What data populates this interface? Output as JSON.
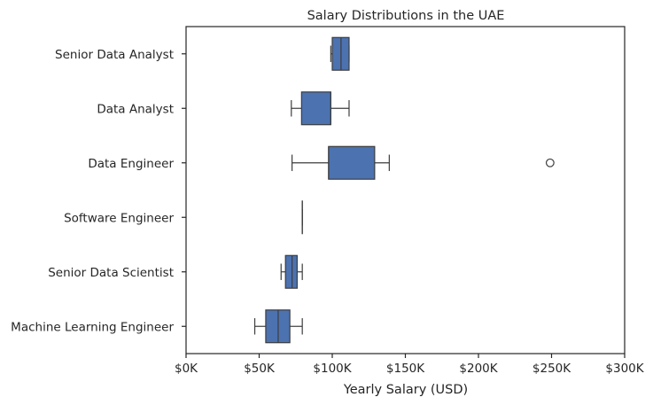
{
  "chart_data": {
    "type": "box",
    "orientation": "horizontal",
    "title": "Salary Distributions in the UAE",
    "xlabel": "Yearly Salary (USD)",
    "ylabel": "",
    "xlim": [
      0,
      300000
    ],
    "xticks": [
      0,
      50000,
      100000,
      150000,
      200000,
      250000,
      300000
    ],
    "xtick_labels": [
      "$0K",
      "$50K",
      "$100K",
      "$150K",
      "$200K",
      "$250K",
      "$300K"
    ],
    "box_color": "#4c72b0",
    "edge_color": "#3d3d3d",
    "grid": false,
    "categories": [
      "Senior Data Analyst",
      "Data Analyst",
      "Data Engineer",
      "Software Engineer",
      "Senior Data Scientist",
      "Machine Learning Engineer"
    ],
    "boxes": [
      {
        "category": "Senior Data Analyst",
        "whislo": 99000,
        "q1": 100000,
        "med": 106000,
        "q3": 111500,
        "whishi": 111500,
        "fliers": []
      },
      {
        "category": "Data Analyst",
        "whislo": 72000,
        "q1": 79000,
        "med": 99000,
        "q3": 99000,
        "whishi": 111500,
        "fliers": []
      },
      {
        "category": "Data Engineer",
        "whislo": 72500,
        "q1": 97500,
        "med": 97500,
        "q3": 129000,
        "whishi": 139000,
        "fliers": [
          249000
        ]
      },
      {
        "category": "Software Engineer",
        "whislo": 79500,
        "q1": 79500,
        "med": 79500,
        "q3": 79500,
        "whishi": 79500,
        "fliers": []
      },
      {
        "category": "Senior Data Scientist",
        "whislo": 65000,
        "q1": 68000,
        "med": 72500,
        "q3": 76000,
        "whishi": 79500,
        "fliers": []
      },
      {
        "category": "Machine Learning Engineer",
        "whislo": 47000,
        "q1": 54500,
        "med": 63000,
        "q3": 71000,
        "whishi": 79500,
        "fliers": []
      }
    ]
  }
}
